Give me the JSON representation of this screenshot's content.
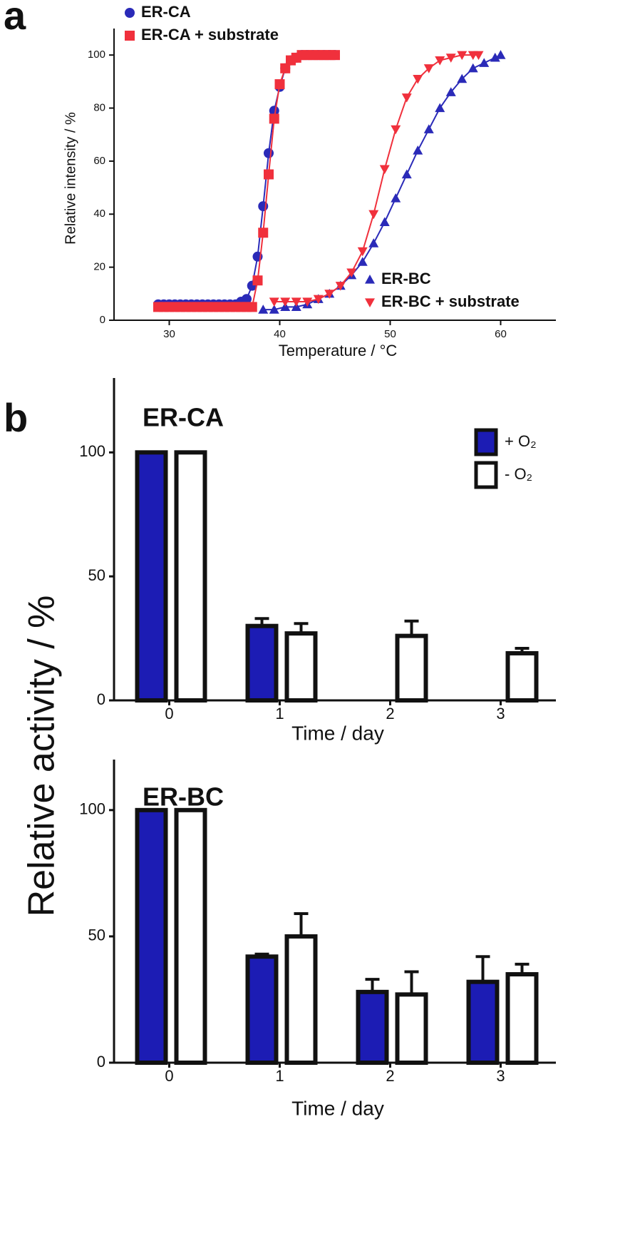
{
  "chart_data": [
    {
      "type": "line",
      "panel_label": "a",
      "xlabel": "Temperature / °C",
      "ylabel": "Relative intensity / %",
      "xlim": [
        25,
        65
      ],
      "xticks": [
        30,
        40,
        50,
        60
      ],
      "ylim": [
        0,
        110
      ],
      "yticks": [
        0,
        20,
        40,
        60,
        80,
        100
      ],
      "series": [
        {
          "name": "ER-CA",
          "color": "#2a2ab8",
          "marker": "circle",
          "x": [
            29,
            29.5,
            30,
            30.5,
            31,
            31.5,
            32,
            32.5,
            33,
            33.5,
            34,
            34.5,
            35,
            35.5,
            36,
            36.5,
            37,
            37.5,
            38,
            38.5,
            39,
            39.5,
            40,
            40.5,
            41,
            41.5,
            42,
            42.5,
            43,
            43.5,
            44,
            44.5,
            45
          ],
          "values": [
            6,
            6,
            6,
            6,
            6,
            6,
            6,
            6,
            6,
            6,
            6,
            6,
            6,
            6,
            6,
            7,
            8,
            13,
            24,
            43,
            63,
            79,
            88,
            95,
            98,
            99,
            100,
            100,
            100,
            100,
            100,
            100,
            100
          ]
        },
        {
          "name": "ER-CA + substrate",
          "color": "#f0303c",
          "marker": "square",
          "x": [
            29,
            29.5,
            30,
            30.5,
            31,
            31.5,
            32,
            32.5,
            33,
            33.5,
            34,
            34.5,
            35,
            35.5,
            36,
            36.5,
            37,
            37.5,
            38,
            38.5,
            39,
            39.5,
            40,
            40.5,
            41,
            41.5,
            42,
            42.5,
            43,
            43.5,
            44,
            44.5,
            45
          ],
          "values": [
            5,
            5,
            5,
            5,
            5,
            5,
            5,
            5,
            5,
            5,
            5,
            5,
            5,
            5,
            5,
            5,
            5,
            5,
            15,
            33,
            55,
            76,
            89,
            95,
            98,
            99,
            100,
            100,
            100,
            100,
            100,
            100,
            100
          ]
        },
        {
          "name": "ER-BC",
          "color": "#2a2ab8",
          "marker": "triangle-up",
          "x": [
            38.5,
            39.5,
            40.5,
            41.5,
            42.5,
            43.5,
            44.5,
            45.5,
            46.5,
            47.5,
            48.5,
            49.5,
            50.5,
            51.5,
            52.5,
            53.5,
            54.5,
            55.5,
            56.5,
            57.5,
            58.5,
            59.5,
            60
          ],
          "values": [
            4,
            4,
            5,
            5,
            6,
            8,
            10,
            13,
            17,
            22,
            29,
            37,
            46,
            55,
            64,
            72,
            80,
            86,
            91,
            95,
            97,
            99,
            100
          ]
        },
        {
          "name": "ER-BC + substrate",
          "color": "#f0303c",
          "marker": "triangle-down",
          "x": [
            39.5,
            40.5,
            41.5,
            42.5,
            43.5,
            44.5,
            45.5,
            46.5,
            47.5,
            48.5,
            49.5,
            50.5,
            51.5,
            52.5,
            53.5,
            54.5,
            55.5,
            56.5,
            57.5,
            58
          ],
          "values": [
            7,
            7,
            7,
            7,
            8,
            10,
            13,
            18,
            26,
            40,
            57,
            72,
            84,
            91,
            95,
            98,
            99,
            100,
            100,
            100
          ]
        }
      ]
    },
    {
      "type": "bar",
      "panel_label": "b",
      "title": "ER-CA",
      "xlabel": "Time / day",
      "ylabel": "Relative activity / %",
      "x": [
        0,
        1,
        2,
        3
      ],
      "xlim": [
        -0.5,
        3.5
      ],
      "xticks": [
        0,
        1,
        2,
        3
      ],
      "ylim": [
        0,
        130
      ],
      "yticks": [
        0,
        50,
        100
      ],
      "series": [
        {
          "name": "+ O₂",
          "color": "#1c1cb4",
          "values": [
            100,
            30,
            0,
            0
          ],
          "errors": [
            0,
            3,
            0,
            0
          ]
        },
        {
          "name": "-  O₂",
          "color": "#ffffff",
          "values": [
            100,
            27,
            26,
            19
          ],
          "errors": [
            0,
            4,
            6,
            2
          ]
        }
      ]
    },
    {
      "type": "bar",
      "title": "ER-BC",
      "xlabel": "Time / day",
      "x": [
        0,
        1,
        2,
        3
      ],
      "xlim": [
        -0.5,
        3.5
      ],
      "xticks": [
        0,
        1,
        2,
        3
      ],
      "ylim": [
        0,
        120
      ],
      "yticks": [
        0,
        50,
        100
      ],
      "series": [
        {
          "name": "+ O₂",
          "color": "#1c1cb4",
          "values": [
            100,
            42,
            28,
            32
          ],
          "errors": [
            0,
            1,
            5,
            10
          ]
        },
        {
          "name": "-  O₂",
          "color": "#ffffff",
          "values": [
            100,
            50,
            27,
            35
          ],
          "errors": [
            0,
            9,
            9,
            4
          ]
        }
      ]
    }
  ]
}
